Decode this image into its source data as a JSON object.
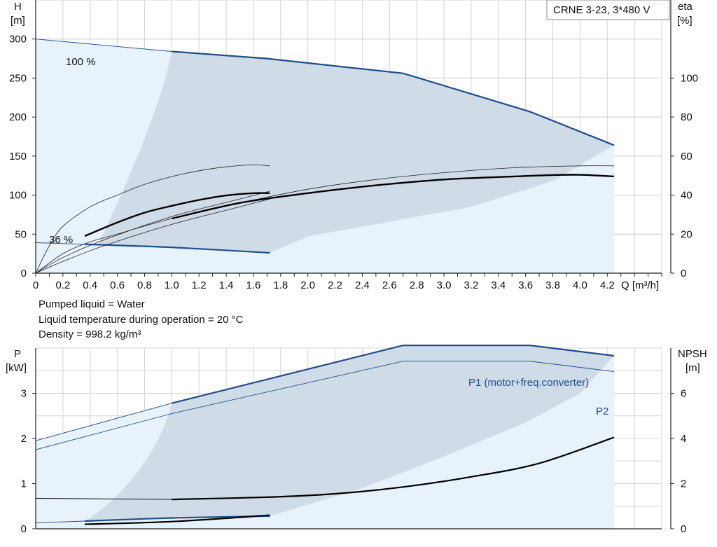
{
  "chart_data": [
    {
      "type": "line",
      "title_box": "CRNE 3-23, 3*480 V",
      "xlabel": "Q [m³/h]",
      "ylabel_left": "H",
      "ylabel_left_unit": "[m]",
      "ylabel_right": "eta",
      "ylabel_right_unit": "[%]",
      "xlim": [
        0,
        4.6
      ],
      "ylim_left": [
        0,
        350
      ],
      "ylim_right": [
        0,
        140
      ],
      "x_ticks": [
        "0",
        "0.2",
        "0.4",
        "0.6",
        "0.8",
        "1.0",
        "1.2",
        "1.4",
        "1.6",
        "1.8",
        "2.0",
        "2.2",
        "2.4",
        "2.6",
        "2.8",
        "3.0",
        "3.2",
        "3.4",
        "3.6",
        "3.8",
        "4.0",
        "4.2"
      ],
      "y_left_ticks": [
        "0",
        "50",
        "100",
        "150",
        "200",
        "250",
        "300"
      ],
      "y_right_ticks": [
        "0",
        "20",
        "40",
        "60",
        "80",
        "100"
      ],
      "curve_labels": {
        "max_speed": "100 %",
        "min_speed": "36 %"
      },
      "series": [
        {
          "role": "head-max-speed",
          "x": [
            0,
            1.0,
            1.7,
            2.7,
            3.63,
            4.25
          ],
          "y": [
            300,
            284,
            275,
            256,
            207,
            164
          ]
        },
        {
          "role": "head-min-speed",
          "x": [
            0,
            0.36,
            1.0,
            1.72
          ],
          "y": [
            39,
            37,
            33,
            26
          ]
        },
        {
          "role": "efficiency-max-speed",
          "x": [
            1.0,
            1.5,
            2.0,
            2.5,
            3.0,
            3.5,
            3.8,
            4.0,
            4.25
          ],
          "y": [
            28,
            36,
            41,
            45,
            48,
            49.5,
            50.3,
            50.4,
            49.6
          ]
        },
        {
          "role": "efficiency-min-speed",
          "x": [
            0.36,
            0.6,
            0.8,
            1.0,
            1.2,
            1.4,
            1.6,
            1.72
          ],
          "y": [
            19,
            26,
            31,
            34.5,
            37.5,
            39.8,
            41,
            41
          ]
        },
        {
          "role": "efficiency-thin-max",
          "x": [
            0,
            0.2,
            0.4,
            0.6,
            1.0,
            1.5,
            2.0,
            2.5,
            3.0,
            3.5,
            4.0,
            4.25
          ],
          "y": [
            0,
            10,
            16,
            20,
            28,
            36,
            43,
            48,
            51.5,
            54,
            55,
            55
          ]
        },
        {
          "role": "efficiency-thin-min",
          "x": [
            0,
            0.1,
            0.2,
            0.4,
            0.6,
            0.8,
            1.0,
            1.2,
            1.4,
            1.6,
            1.72
          ],
          "y": [
            0,
            14,
            24,
            34,
            40,
            45.5,
            49.5,
            52.5,
            54.5,
            55.5,
            55
          ]
        },
        {
          "role": "efficiency-thin-a",
          "x": [
            0,
            0.2,
            0.5,
            1.0,
            1.5,
            1.72
          ],
          "y": [
            0,
            8,
            17,
            29,
            38,
            42
          ]
        },
        {
          "role": "efficiency-thin-b",
          "x": [
            0,
            0.2,
            0.5,
            1.0,
            1.5,
            1.72
          ],
          "y": [
            0,
            6,
            14,
            25,
            34,
            38
          ]
        }
      ]
    },
    {
      "type": "line",
      "xlabel": "Q [m³/h]",
      "ylabel_left": "P",
      "ylabel_left_unit": "[kW]",
      "ylabel_right": "NPSH",
      "ylabel_right_unit": "[m]",
      "xlim": [
        0,
        4.6
      ],
      "ylim_left": [
        0,
        4
      ],
      "ylim_right": [
        0,
        8
      ],
      "y_left_ticks": [
        "0",
        "1",
        "2",
        "3"
      ],
      "y_right_ticks": [
        "0",
        "2",
        "4",
        "6"
      ],
      "series": [
        {
          "name": "P1 (motor+freq.converter)",
          "x": [
            0,
            1.0,
            2.7,
            3.63,
            4.25
          ],
          "y": [
            1.95,
            2.78,
            4.06,
            4.06,
            3.83
          ]
        },
        {
          "name": "P2",
          "x": [
            0,
            1.0,
            2.7,
            3.63,
            4.25
          ],
          "y": [
            1.75,
            2.55,
            3.71,
            3.71,
            3.48
          ]
        },
        {
          "role": "npsh",
          "x": [
            0,
            1.0,
            1.7,
            2.2,
            2.7,
            3.2,
            3.7,
            4.25
          ],
          "y": [
            1.35,
            1.3,
            1.4,
            1.55,
            1.85,
            2.3,
            2.9,
            4.05
          ]
        },
        {
          "role": "p1-min-speed",
          "x": [
            0,
            0.36,
            1.0,
            1.72
          ],
          "y": [
            0.13,
            0.17,
            0.24,
            0.28
          ]
        },
        {
          "role": "p2-min-speed",
          "x": [
            0.36,
            1.0,
            1.72
          ],
          "y": [
            0.1,
            0.16,
            0.3
          ]
        }
      ]
    }
  ],
  "notes": [
    "Pumped liquid = Water",
    "Liquid temperature during operation = 20 °C",
    "Density = 998.2 kg/m³"
  ],
  "colors": {
    "curve_blue": "#1f4e8c",
    "curve_black": "#000000",
    "fill_light": "#e8f2fb",
    "fill_dark": "#cfdbe6",
    "grid": "#d4d4d4"
  }
}
